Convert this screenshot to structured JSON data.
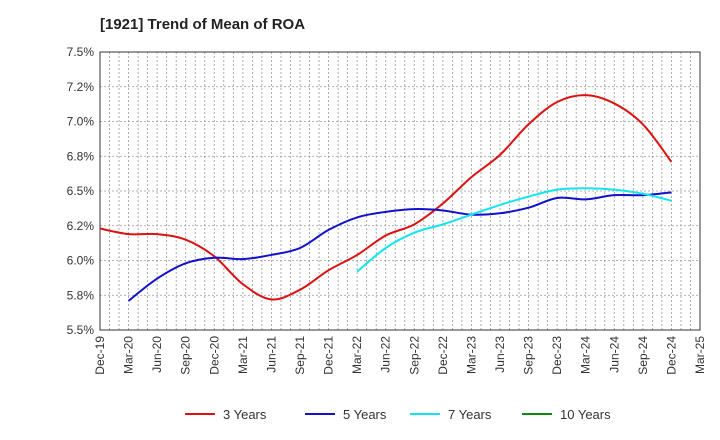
{
  "chart_data": {
    "type": "line",
    "title": "[1921]  Trend of Mean of ROA",
    "xlabel": "",
    "ylabel": "",
    "categories": [
      "Dec-19",
      "Mar-20",
      "Jun-20",
      "Sep-20",
      "Dec-20",
      "Mar-21",
      "Jun-21",
      "Sep-21",
      "Dec-21",
      "Mar-22",
      "Jun-22",
      "Sep-22",
      "Dec-22",
      "Mar-23",
      "Jun-23",
      "Sep-23",
      "Dec-23",
      "Mar-24",
      "Jun-24",
      "Sep-24",
      "Dec-24",
      "Mar-25"
    ],
    "yticks": [
      "5.5%",
      "5.8%",
      "6.0%",
      "6.2%",
      "6.5%",
      "6.8%",
      "7.0%",
      "7.2%",
      "7.5%"
    ],
    "ylim": [
      5.5,
      7.5
    ],
    "grid": true,
    "legend_position": "bottom",
    "series": [
      {
        "name": "3 Years",
        "color": "#dd1111",
        "values": [
          6.23,
          6.19,
          6.19,
          6.15,
          6.03,
          5.83,
          5.72,
          5.79,
          5.93,
          6.04,
          6.18,
          6.26,
          6.41,
          6.6,
          6.76,
          6.98,
          7.14,
          7.19,
          7.13,
          6.98,
          6.71,
          null
        ]
      },
      {
        "name": "5 Years",
        "color": "#1111cc",
        "values": [
          null,
          5.71,
          5.87,
          5.98,
          6.02,
          6.01,
          6.04,
          6.09,
          6.22,
          6.31,
          6.35,
          6.37,
          6.36,
          6.33,
          6.34,
          6.38,
          6.45,
          6.44,
          6.47,
          6.47,
          6.49,
          null
        ]
      },
      {
        "name": "7 Years",
        "color": "#11e5ee",
        "values": [
          null,
          null,
          null,
          null,
          null,
          null,
          null,
          null,
          null,
          5.92,
          6.09,
          6.2,
          6.26,
          6.33,
          6.4,
          6.46,
          6.51,
          6.52,
          6.51,
          6.48,
          6.43,
          null
        ]
      },
      {
        "name": "10 Years",
        "color": "#118811",
        "values": [
          null,
          null,
          null,
          null,
          null,
          null,
          null,
          null,
          null,
          null,
          null,
          null,
          null,
          null,
          null,
          null,
          null,
          null,
          null,
          null,
          null,
          null
        ]
      }
    ]
  }
}
